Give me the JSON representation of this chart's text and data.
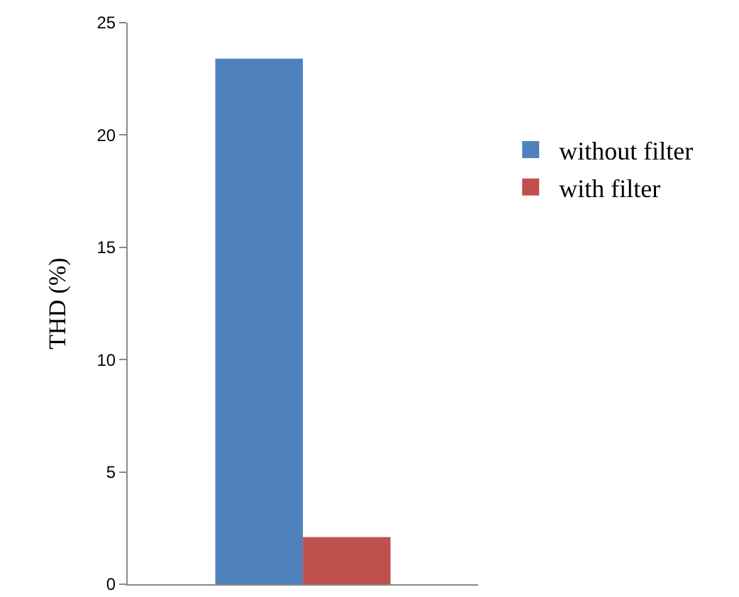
{
  "chart_data": {
    "type": "bar",
    "ylabel": "THD (%)",
    "categories": [
      null
    ],
    "series": [
      {
        "name": "without filter",
        "color": "#4f81bd",
        "values": [
          23.4
        ]
      },
      {
        "name": "with filter",
        "color": "#c0504d",
        "values": [
          2.1
        ]
      }
    ],
    "ylim": [
      0,
      25
    ],
    "yticks": [
      0,
      5,
      10,
      15,
      20,
      25
    ],
    "grid": false,
    "legend": "right"
  }
}
